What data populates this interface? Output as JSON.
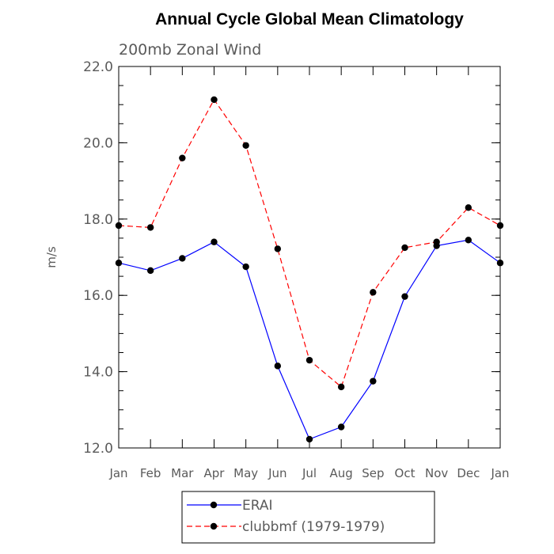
{
  "chart_data": {
    "type": "line",
    "title": "Annual Cycle Global Mean Climatology",
    "subtitle": "200mb Zonal Wind",
    "xlabel": "",
    "ylabel": "m/s",
    "ylim": [
      12.0,
      22.0
    ],
    "yticks": [
      "12.0",
      "14.0",
      "16.0",
      "18.0",
      "20.0",
      "22.0"
    ],
    "categories": [
      "Jan",
      "Feb",
      "Mar",
      "Apr",
      "May",
      "Jun",
      "Jul",
      "Aug",
      "Sep",
      "Oct",
      "Nov",
      "Dec",
      "Jan"
    ],
    "grid": false,
    "legend_position": "bottom",
    "series": [
      {
        "name": "ERAI",
        "color": "#0000ff",
        "line_style": "solid",
        "marker": "filled-circle",
        "values": [
          16.85,
          16.65,
          16.97,
          17.4,
          16.75,
          14.15,
          12.23,
          12.55,
          13.75,
          15.97,
          17.3,
          17.45,
          16.85
        ]
      },
      {
        "name": "clubbmf (1979-1979)",
        "color": "#ff0000",
        "line_style": "dashed",
        "marker": "filled-circle",
        "values": [
          17.83,
          17.78,
          19.6,
          21.13,
          19.93,
          17.22,
          14.3,
          13.6,
          16.08,
          17.25,
          17.4,
          18.3,
          17.83
        ]
      }
    ]
  }
}
